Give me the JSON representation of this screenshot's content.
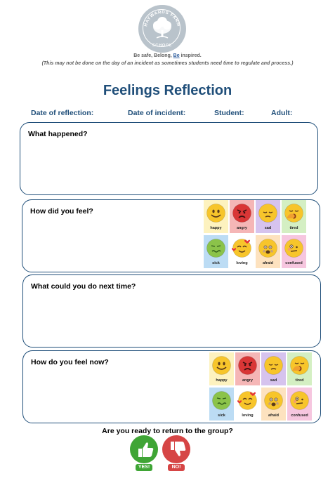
{
  "school": {
    "logo_text": "HAYWARDS FARM SCHOOL",
    "tagline_prefix": "Be safe, Belong,",
    "tagline_be": "Be",
    "tagline_suffix": "inspired.",
    "note": "(This may not be done on the day of an incident as sometimes students need time to regulate and process.)"
  },
  "title": "Feelings Reflection",
  "fields": {
    "date_reflection": "Date of reflection:",
    "date_incident": "Date of incident:",
    "student": "Student:",
    "adult": "Adult:"
  },
  "sections": {
    "what_happened": "What happened?",
    "how_did_you_feel": "How did you feel?",
    "what_next_time": "What could you do next time?",
    "how_feel_now": "How do you feel now?"
  },
  "feelings": [
    {
      "label": "happy",
      "bg": "#fdf2bf",
      "face": "#f7c52b",
      "icon": "smiling-face-icon"
    },
    {
      "label": "angry",
      "bg": "#f5b6b6",
      "face": "#d93636",
      "icon": "angry-face-icon"
    },
    {
      "label": "sad",
      "bg": "#d6c3ee",
      "face": "#f7c52b",
      "icon": "sad-face-icon"
    },
    {
      "label": "tired",
      "bg": "#d4efc3",
      "face": "#f7c52b",
      "icon": "yawning-face-icon"
    },
    {
      "label": "sick",
      "bg": "#bcdcf4",
      "face": "#8bc34a",
      "icon": "nauseated-face-icon"
    },
    {
      "label": "loving",
      "bg": "#ffffff",
      "face": "#f7c52b",
      "icon": "smiling-face-with-hearts-icon"
    },
    {
      "label": "afraid",
      "bg": "#fde2bf",
      "face": "#f7c52b",
      "icon": "fearful-face-icon"
    },
    {
      "label": "confused",
      "bg": "#f6c6df",
      "face": "#f7c52b",
      "icon": "confused-face-icon"
    }
  ],
  "return_question": "Are you ready to return to the group?",
  "buttons": {
    "yes": "YES!",
    "no": "NO!"
  },
  "colors": {
    "accent": "#1f4e79",
    "yes": "#3fa535",
    "no": "#d64545"
  }
}
